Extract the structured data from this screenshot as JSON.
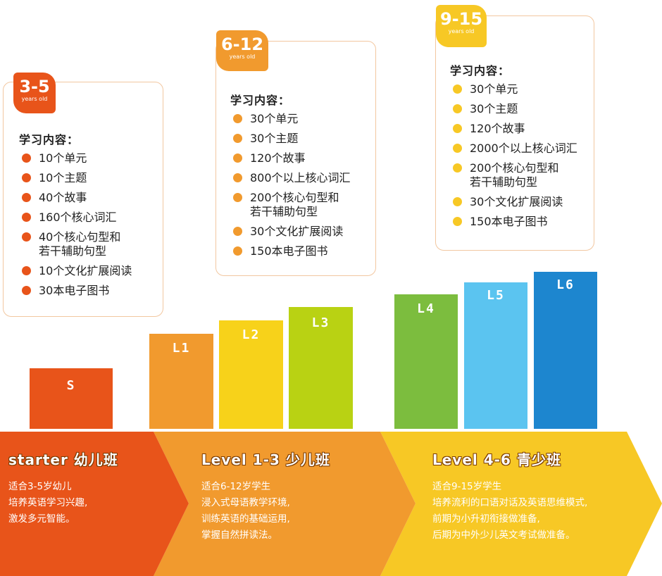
{
  "colors": {
    "orange_dark": "#e8541a",
    "orange": "#f19a2e",
    "yellow": "#f7c825",
    "lime": "#b9d213",
    "green": "#7cbd3e",
    "sky": "#5bc4f0",
    "blue": "#1d86cf",
    "card_border": "#f2c7a0"
  },
  "cards": [
    {
      "age": "3-5",
      "age_sub": "years old",
      "title": "学习内容：",
      "dot_color": "#e8541a",
      "items": [
        "10个单元",
        "10个主题",
        "40个故事",
        "160个核心词汇",
        "40个核心句型和\n若干辅助句型",
        "10个文化扩展阅读",
        "30本电子图书"
      ]
    },
    {
      "age": "6-12",
      "age_sub": "years old",
      "title": "学习内容：",
      "dot_color": "#f19a2e",
      "items": [
        "30个单元",
        "30个主题",
        "120个故事",
        "800个以上核心词汇",
        "200个核心句型和\n若干辅助句型",
        "30个文化扩展阅读",
        "150本电子图书"
      ]
    },
    {
      "age": "9-15",
      "age_sub": "years old",
      "title": "学习内容：",
      "dot_color": "#f7c825",
      "items": [
        "30个单元",
        "30个主题",
        "120个故事",
        "2000个以上核心词汇",
        "200个核心句型和\n若干辅助句型",
        "30个文化扩展阅读",
        "150本电子图书"
      ]
    }
  ],
  "levels": [
    {
      "label": "S",
      "color": "#e8541a"
    },
    {
      "label": "L1",
      "color": "#f19a2e"
    },
    {
      "label": "L2",
      "color": "#f7d21a"
    },
    {
      "label": "L3",
      "color": "#b9d213"
    },
    {
      "label": "L4",
      "color": "#7cbd3e"
    },
    {
      "label": "L5",
      "color": "#5bc4f0"
    },
    {
      "label": "L6",
      "color": "#1d86cf"
    }
  ],
  "bands": [
    {
      "title": "starter 幼儿班",
      "lines": [
        "适合3-5岁幼儿",
        "培养英语学习兴趣,",
        "激发多元智能。"
      ],
      "color": "#e8541a"
    },
    {
      "title": "Level 1-3  少儿班",
      "lines": [
        "适合6-12岁学生",
        "浸入式母语教学环境,",
        "训练英语的基础运用,",
        "掌握自然拼读法。"
      ],
      "color": "#f19a2e"
    },
    {
      "title": "Level 4-6  青少班",
      "lines": [
        "适合9-15岁学生",
        "培养流利的口语对话及英语思维模式,",
        "前期为小升初衔接做准备,",
        "后期为中外少儿英文考试做准备。"
      ],
      "color": "#f7c825"
    }
  ]
}
